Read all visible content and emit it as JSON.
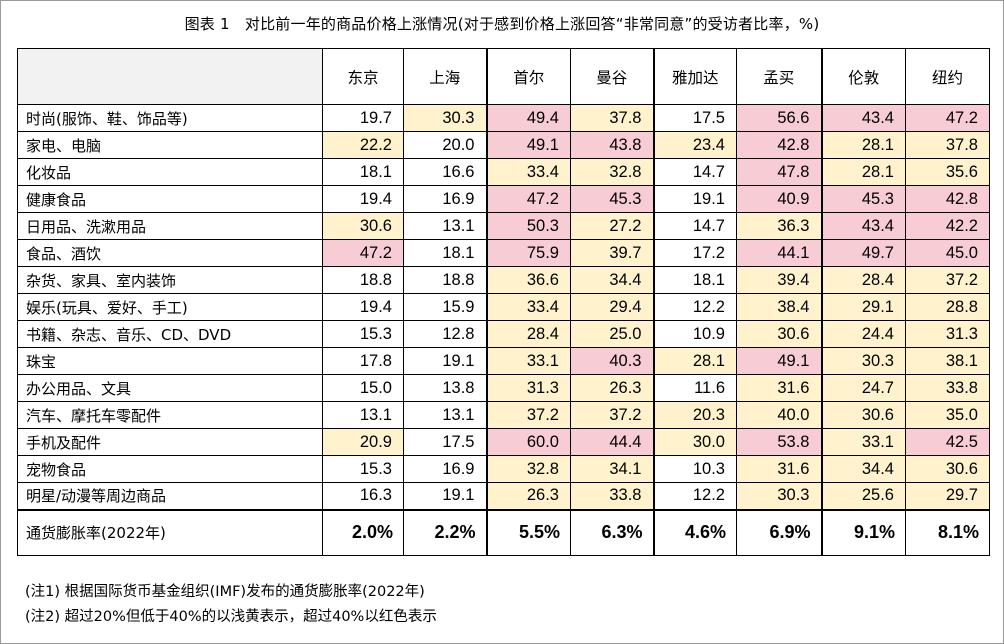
{
  "title": "图表 1　对比前一年的商品价格上涨情况(对于感到价格上涨回答“非常同意”的受访者比率，%)",
  "columns": [
    "东京",
    "上海",
    "首尔",
    "曼谷",
    "雅加达",
    "孟买",
    "伦敦",
    "纽约"
  ],
  "colors": {
    "light_yellow": "#fff2cc",
    "red": "#f8ccd4"
  },
  "rows": [
    {
      "label": "时尚(服饰、鞋、饰品等)",
      "values": [
        "19.7",
        "30.3",
        "49.4",
        "37.8",
        "17.5",
        "56.6",
        "43.4",
        "47.2"
      ],
      "levels": [
        "",
        "y",
        "r",
        "y",
        "",
        "r",
        "r",
        "r"
      ]
    },
    {
      "label": "家电、电脑",
      "values": [
        "22.2",
        "20.0",
        "49.1",
        "43.8",
        "23.4",
        "42.8",
        "28.1",
        "37.8"
      ],
      "levels": [
        "y",
        "",
        "r",
        "r",
        "y",
        "r",
        "y",
        "y"
      ]
    },
    {
      "label": "化妆品",
      "values": [
        "18.1",
        "16.6",
        "33.4",
        "32.8",
        "14.7",
        "47.8",
        "28.1",
        "35.6"
      ],
      "levels": [
        "",
        "",
        "y",
        "y",
        "",
        "r",
        "y",
        "y"
      ]
    },
    {
      "label": "健康食品",
      "values": [
        "19.4",
        "16.9",
        "47.2",
        "45.3",
        "19.1",
        "40.9",
        "45.3",
        "42.8"
      ],
      "levels": [
        "",
        "",
        "r",
        "r",
        "",
        "r",
        "r",
        "r"
      ]
    },
    {
      "label": "日用品、洗漱用品",
      "values": [
        "30.6",
        "13.1",
        "50.3",
        "27.2",
        "14.7",
        "36.3",
        "43.4",
        "42.2"
      ],
      "levels": [
        "y",
        "",
        "r",
        "y",
        "",
        "y",
        "r",
        "r"
      ]
    },
    {
      "label": "食品、酒饮",
      "values": [
        "47.2",
        "18.1",
        "75.9",
        "39.7",
        "17.2",
        "44.1",
        "49.7",
        "45.0"
      ],
      "levels": [
        "r",
        "",
        "r",
        "y",
        "",
        "r",
        "r",
        "r"
      ]
    },
    {
      "label": "杂货、家具、室内装饰",
      "values": [
        "18.8",
        "18.8",
        "36.6",
        "34.4",
        "18.1",
        "39.4",
        "28.4",
        "37.2"
      ],
      "levels": [
        "",
        "",
        "y",
        "y",
        "",
        "y",
        "y",
        "y"
      ]
    },
    {
      "label": "娱乐(玩具、爱好、手工)",
      "values": [
        "19.4",
        "15.9",
        "33.4",
        "29.4",
        "12.2",
        "38.4",
        "29.1",
        "28.8"
      ],
      "levels": [
        "",
        "",
        "y",
        "y",
        "",
        "y",
        "y",
        "y"
      ]
    },
    {
      "label": "书籍、杂志、音乐、CD、DVD",
      "values": [
        "15.3",
        "12.8",
        "28.4",
        "25.0",
        "10.9",
        "30.6",
        "24.4",
        "31.3"
      ],
      "levels": [
        "",
        "",
        "y",
        "y",
        "",
        "y",
        "y",
        "y"
      ]
    },
    {
      "label": "珠宝",
      "values": [
        "17.8",
        "19.1",
        "33.1",
        "40.3",
        "28.1",
        "49.1",
        "30.3",
        "38.1"
      ],
      "levels": [
        "",
        "",
        "y",
        "r",
        "y",
        "r",
        "y",
        "y"
      ]
    },
    {
      "label": "办公用品、文具",
      "values": [
        "15.0",
        "13.8",
        "31.3",
        "26.3",
        "11.6",
        "31.6",
        "24.7",
        "33.8"
      ],
      "levels": [
        "",
        "",
        "y",
        "y",
        "",
        "y",
        "y",
        "y"
      ]
    },
    {
      "label": "汽车、摩托车零配件",
      "values": [
        "13.1",
        "13.1",
        "37.2",
        "37.2",
        "20.3",
        "40.0",
        "30.6",
        "35.0"
      ],
      "levels": [
        "",
        "",
        "y",
        "y",
        "y",
        "y",
        "y",
        "y"
      ]
    },
    {
      "label": "手机及配件",
      "values": [
        "20.9",
        "17.5",
        "60.0",
        "44.4",
        "30.0",
        "53.8",
        "33.1",
        "42.5"
      ],
      "levels": [
        "y",
        "",
        "r",
        "r",
        "y",
        "r",
        "y",
        "r"
      ]
    },
    {
      "label": "宠物食品",
      "values": [
        "15.3",
        "16.9",
        "32.8",
        "34.1",
        "10.3",
        "31.6",
        "34.4",
        "30.6"
      ],
      "levels": [
        "",
        "",
        "y",
        "y",
        "",
        "y",
        "y",
        "y"
      ]
    },
    {
      "label": "明星/动漫等周边商品",
      "values": [
        "16.3",
        "19.1",
        "26.3",
        "33.8",
        "12.2",
        "30.3",
        "25.6",
        "29.7"
      ],
      "levels": [
        "",
        "",
        "y",
        "y",
        "",
        "y",
        "y",
        "y"
      ]
    }
  ],
  "inflation": {
    "label": "通货膨胀率(2022年)",
    "values": [
      "2.0%",
      "2.2%",
      "5.5%",
      "6.3%",
      "4.6%",
      "6.9%",
      "9.1%",
      "8.1%"
    ]
  },
  "notes": [
    "(注1) 根据国际货币基金组织(IMF)发布的通货膨胀率(2022年)",
    "(注2) 超过20%但低于40%的以浅黄表示，超过40%以红色表示"
  ]
}
